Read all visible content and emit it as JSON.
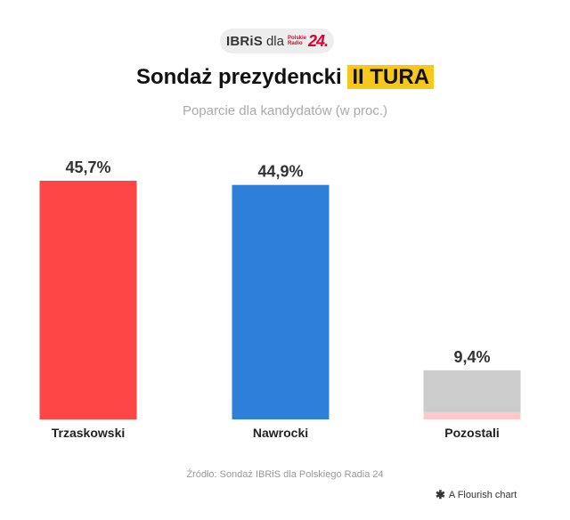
{
  "badge": {
    "brand": "IBRiS",
    "connector": "dla",
    "partner_line1": "Polskie",
    "partner_line2": "Radio",
    "partner_number": "24."
  },
  "title": {
    "main": "Sondaż prezydencki",
    "highlight": "II TURA"
  },
  "subtitle": "Poparcie dla kandydatów (w proc.)",
  "source": "Źródło: Sondaż IBRiS dla Polskiego Radia 24",
  "footer": {
    "icon": "flourish-star-icon",
    "label": "A Flourish chart"
  },
  "colors": {
    "highlight": "#f6c81c",
    "trzaskowski": "#ff4646",
    "nawrocki": "#2d7fd8",
    "pozostali": "#cccccc",
    "pozostali_base": "#ffc8c8"
  },
  "chart_data": {
    "type": "bar",
    "title": "Sondaż prezydencki II TURA",
    "subtitle": "Poparcie dla kandydatów (w proc.)",
    "categories": [
      "Trzaskowski",
      "Nawrocki",
      "Pozostali"
    ],
    "values": [
      45.7,
      44.9,
      9.4
    ],
    "value_labels": [
      "45,7%",
      "44,9%",
      "9,4%"
    ],
    "colors": [
      "#ff4646",
      "#2d7fd8",
      "#cccccc"
    ],
    "pozostali_segments": [
      {
        "value": 8.0,
        "color": "#cccccc"
      },
      {
        "value": 1.4,
        "color": "#ffc8c8"
      }
    ],
    "xlabel": "",
    "ylabel": "",
    "ylim": [
      0,
      45.7
    ],
    "grid": false,
    "legend": "none"
  }
}
